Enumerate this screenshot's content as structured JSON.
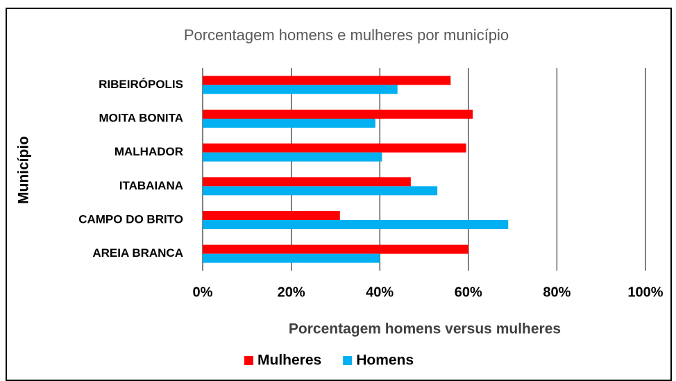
{
  "chart_data": {
    "type": "bar",
    "orientation": "horizontal",
    "title": "Porcentagem homens e mulheres por município",
    "x_label": "Porcentagem homens versus mulheres",
    "y_label": "Município",
    "categories": [
      "RIBEIRÓPOLIS",
      "MOITA BONITA",
      "MALHADOR",
      "ITABAIANA",
      "CAMPO DO BRITO",
      "AREIA BRANCA"
    ],
    "series": [
      {
        "name": "Mulheres",
        "color": "#ff0000",
        "values": [
          56,
          61,
          59.5,
          47,
          31,
          60
        ]
      },
      {
        "name": "Homens",
        "color": "#00b0f0",
        "values": [
          44,
          39,
          40.5,
          53,
          69,
          40
        ]
      }
    ],
    "xlim": [
      0,
      100
    ],
    "xticks": [
      {
        "value": 0,
        "label": "0%"
      },
      {
        "value": 20,
        "label": "20%"
      },
      {
        "value": 40,
        "label": "40%"
      },
      {
        "value": 60,
        "label": "60%"
      },
      {
        "value": 80,
        "label": "80%"
      },
      {
        "value": 100,
        "label": "100%"
      }
    ],
    "grid": true,
    "legend": "bottom"
  }
}
